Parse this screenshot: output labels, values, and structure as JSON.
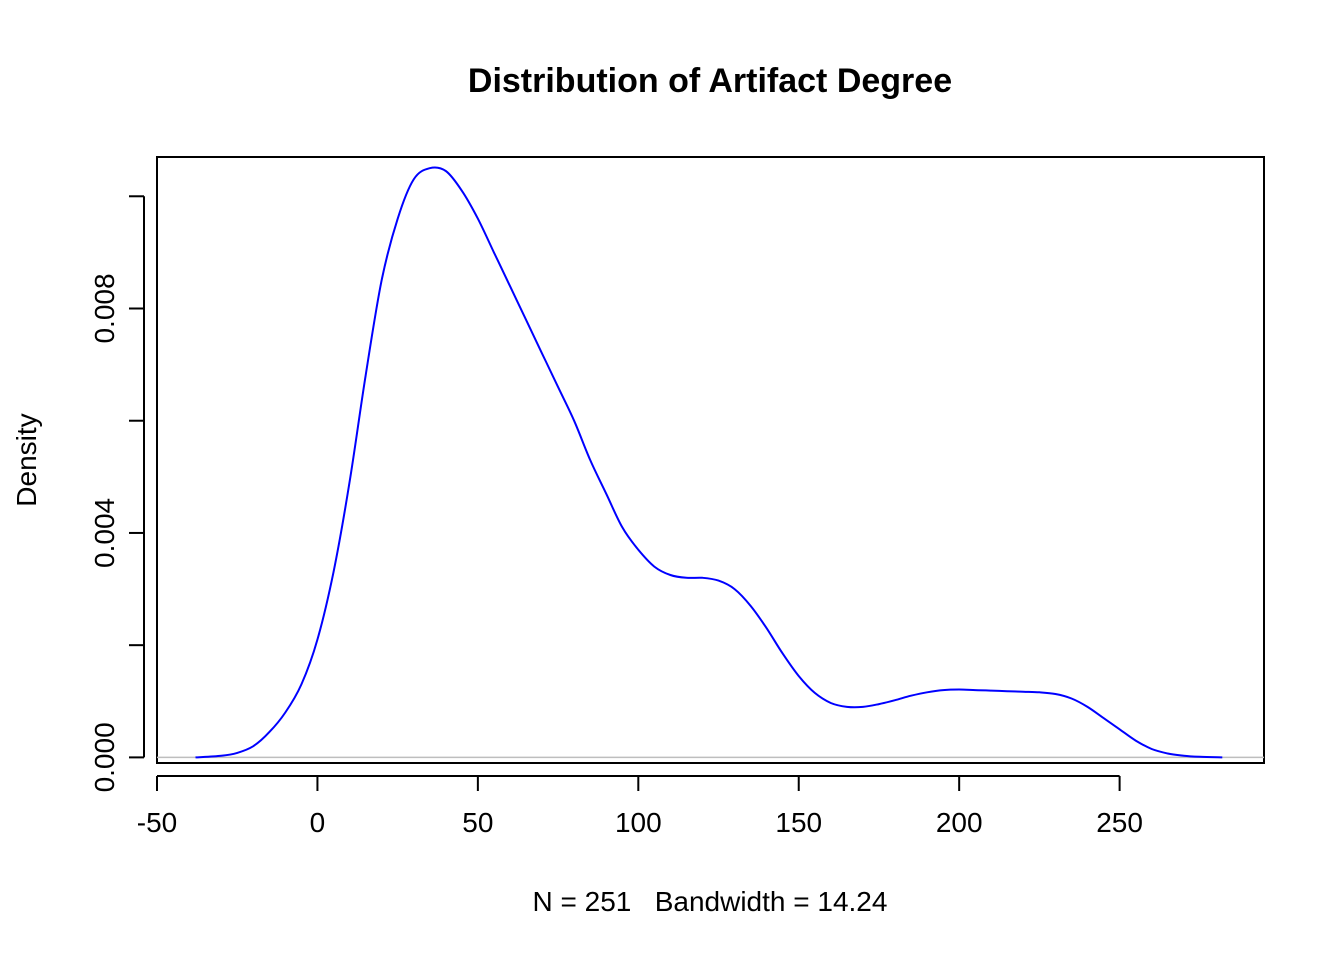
{
  "chart_data": {
    "type": "line",
    "title": "Distribution of Artifact Degree",
    "xlabel": "N = 251   Bandwidth = 14.24",
    "ylabel": "Density",
    "xlim": [
      -50,
      295
    ],
    "ylim": [
      -0.0001,
      0.0107
    ],
    "x_ticks": [
      -50,
      0,
      50,
      100,
      150,
      200,
      250
    ],
    "x_tick_labels": [
      "-50",
      "0",
      "50",
      "100",
      "150",
      "200",
      "250"
    ],
    "y_ticks": [
      0.0,
      0.002,
      0.004,
      0.006,
      0.008,
      0.01
    ],
    "y_tick_labels": [
      "0.000",
      "",
      "0.004",
      "",
      "0.008",
      ""
    ],
    "grid": false,
    "baseline_y": 0,
    "series": [
      {
        "color": "#0000ff",
        "x": [
          -38,
          -30,
          -25,
          -20,
          -15,
          -10,
          -5,
          0,
          5,
          10,
          15,
          20,
          25,
          30,
          35,
          40,
          45,
          50,
          55,
          60,
          65,
          70,
          75,
          80,
          85,
          90,
          95,
          100,
          105,
          110,
          115,
          120,
          125,
          130,
          135,
          140,
          145,
          150,
          155,
          160,
          165,
          170,
          175,
          180,
          185,
          190,
          195,
          200,
          205,
          210,
          215,
          220,
          225,
          230,
          235,
          240,
          245,
          250,
          255,
          260,
          265,
          270,
          275,
          282
        ],
        "y": [
          0.0,
          3e-05,
          8e-05,
          0.0002,
          0.00045,
          0.0008,
          0.0013,
          0.0021,
          0.0033,
          0.0049,
          0.0068,
          0.0085,
          0.0096,
          0.0103,
          0.0105,
          0.01045,
          0.0101,
          0.0096,
          0.009,
          0.0084,
          0.0078,
          0.0072,
          0.0066,
          0.006,
          0.0053,
          0.0047,
          0.0041,
          0.0037,
          0.0034,
          0.00325,
          0.0032,
          0.0032,
          0.00315,
          0.003,
          0.0027,
          0.0023,
          0.00185,
          0.00145,
          0.00115,
          0.00097,
          0.0009,
          0.0009,
          0.00095,
          0.00102,
          0.0011,
          0.00116,
          0.0012,
          0.00121,
          0.0012,
          0.00119,
          0.00118,
          0.00117,
          0.00116,
          0.00113,
          0.00105,
          0.0009,
          0.0007,
          0.0005,
          0.0003,
          0.00015,
          7e-05,
          3e-05,
          1e-05,
          0.0
        ]
      }
    ]
  }
}
